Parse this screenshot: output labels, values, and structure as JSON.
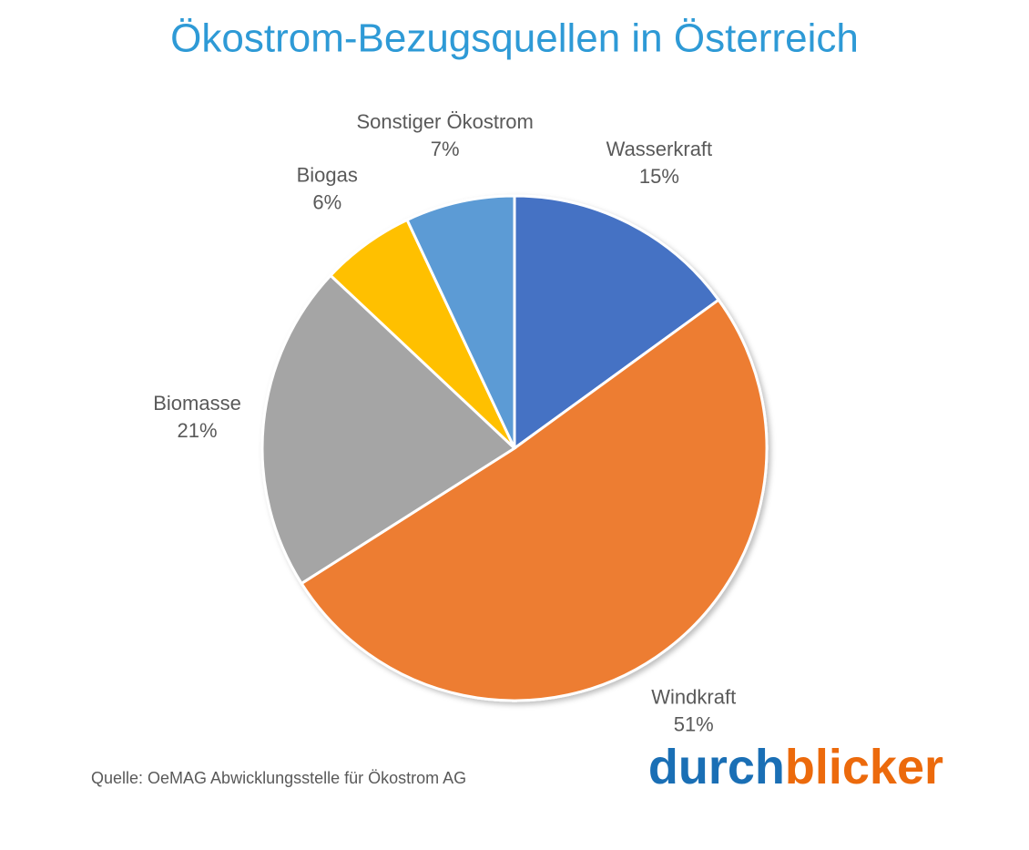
{
  "chart_data": {
    "type": "pie",
    "title": "Ökostrom-Bezugsquellen in Österreich",
    "categories": [
      "Wasserkraft",
      "Windkraft",
      "Biomasse",
      "Biogas",
      "Sonstiger Ökostrom"
    ],
    "values": [
      15,
      51,
      21,
      6,
      7
    ],
    "value_labels": [
      "15%",
      "51%",
      "21%",
      "6%",
      "7%"
    ],
    "colors": [
      "#4472c4",
      "#ed7d31",
      "#a5a5a5",
      "#ffc000",
      "#5b9bd5"
    ],
    "source": "Quelle: OeMAG Abwicklungsstelle für Ökostrom AG",
    "logo": [
      {
        "text": "durch",
        "color": "#1a6fb5"
      },
      {
        "text": "blicker",
        "color": "#ec6a0c"
      }
    ]
  }
}
